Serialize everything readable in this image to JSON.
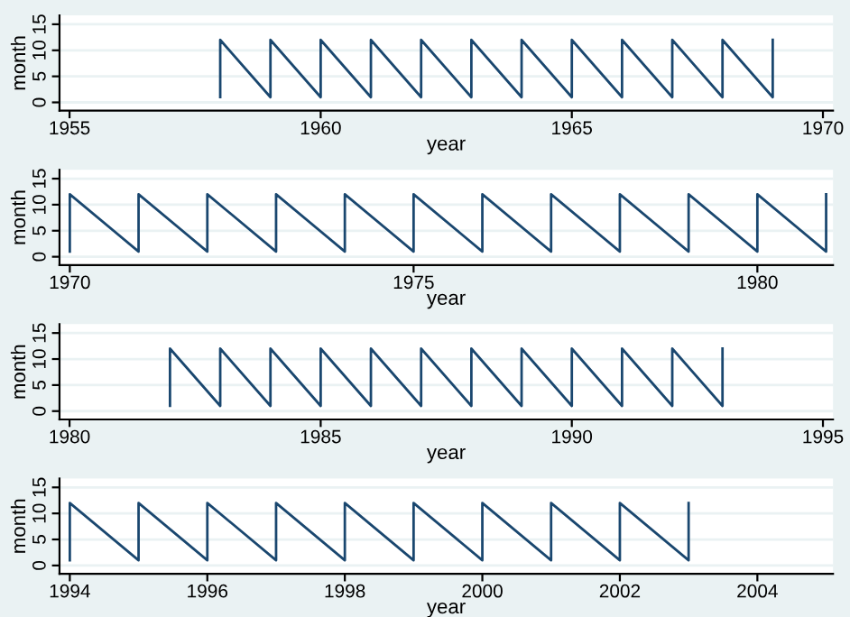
{
  "chart_data": [
    {
      "type": "line",
      "xlabel": "year",
      "ylabel": "month",
      "xlim": [
        1954.8,
        1970.2
      ],
      "xticks": [
        1955,
        1960,
        1965,
        1970
      ],
      "ylim": [
        -1.6,
        16.7
      ],
      "yticks": [
        0,
        5,
        10,
        15
      ],
      "grid": "y",
      "legend": false,
      "marker": "none",
      "line_style": "solid",
      "series": [
        {
          "color": "#1a476f",
          "x": [
            1958,
            1958,
            1959,
            1959,
            1960,
            1960,
            1961,
            1961,
            1962,
            1962,
            1963,
            1963,
            1964,
            1964,
            1965,
            1965,
            1966,
            1966,
            1967,
            1967,
            1968,
            1968,
            1969,
            1969
          ],
          "values": [
            1,
            12,
            1,
            12,
            1,
            12,
            1,
            12,
            1,
            12,
            1,
            12,
            1,
            12,
            1,
            12,
            1,
            12,
            1,
            12,
            1,
            12,
            1,
            12
          ]
        }
      ]
    },
    {
      "type": "line",
      "xlabel": "year",
      "ylabel": "month",
      "xlim": [
        1969.85,
        1981.1
      ],
      "xticks": [
        1970,
        1975,
        1980
      ],
      "ylim": [
        -1.6,
        16.7
      ],
      "yticks": [
        0,
        5,
        10,
        15
      ],
      "grid": "y",
      "legend": false,
      "marker": "none",
      "line_style": "solid",
      "series": [
        {
          "color": "#1a476f",
          "x": [
            1970,
            1970,
            1971,
            1971,
            1972,
            1972,
            1973,
            1973,
            1974,
            1974,
            1975,
            1975,
            1976,
            1976,
            1977,
            1977,
            1978,
            1978,
            1979,
            1979,
            1980,
            1980,
            1981,
            1981
          ],
          "values": [
            1,
            12,
            1,
            12,
            1,
            12,
            1,
            12,
            1,
            12,
            1,
            12,
            1,
            12,
            1,
            12,
            1,
            12,
            1,
            12,
            1,
            12,
            1,
            12
          ]
        }
      ]
    },
    {
      "type": "line",
      "xlabel": "year",
      "ylabel": "month",
      "xlim": [
        1979.8,
        1995.2
      ],
      "xticks": [
        1980,
        1985,
        1990,
        1995
      ],
      "ylim": [
        -1.6,
        16.7
      ],
      "yticks": [
        0,
        5,
        10,
        15
      ],
      "grid": "y",
      "legend": false,
      "marker": "none",
      "line_style": "solid",
      "series": [
        {
          "color": "#1a476f",
          "x": [
            1982,
            1982,
            1983,
            1983,
            1984,
            1984,
            1985,
            1985,
            1986,
            1986,
            1987,
            1987,
            1988,
            1988,
            1989,
            1989,
            1990,
            1990,
            1991,
            1991,
            1992,
            1992,
            1993,
            1993
          ],
          "values": [
            1,
            12,
            1,
            12,
            1,
            12,
            1,
            12,
            1,
            12,
            1,
            12,
            1,
            12,
            1,
            12,
            1,
            12,
            1,
            12,
            1,
            12,
            1,
            12
          ]
        }
      ]
    },
    {
      "type": "line",
      "xlabel": "year",
      "ylabel": "month",
      "xlim": [
        1993.85,
        2005.1
      ],
      "xticks": [
        1994,
        1996,
        1998,
        2000,
        2002,
        2004
      ],
      "ylim": [
        -1.6,
        16.7
      ],
      "yticks": [
        0,
        5,
        10,
        15
      ],
      "grid": "y",
      "legend": false,
      "marker": "none",
      "line_style": "solid",
      "series": [
        {
          "color": "#1a476f",
          "x": [
            1994,
            1994,
            1995,
            1995,
            1996,
            1996,
            1997,
            1997,
            1998,
            1998,
            1999,
            1999,
            2000,
            2000,
            2001,
            2001,
            2002,
            2002,
            2003,
            2003
          ],
          "values": [
            1,
            12,
            1,
            12,
            1,
            12,
            1,
            12,
            1,
            12,
            1,
            12,
            1,
            12,
            1,
            12,
            1,
            12,
            1,
            12
          ]
        }
      ]
    }
  ]
}
